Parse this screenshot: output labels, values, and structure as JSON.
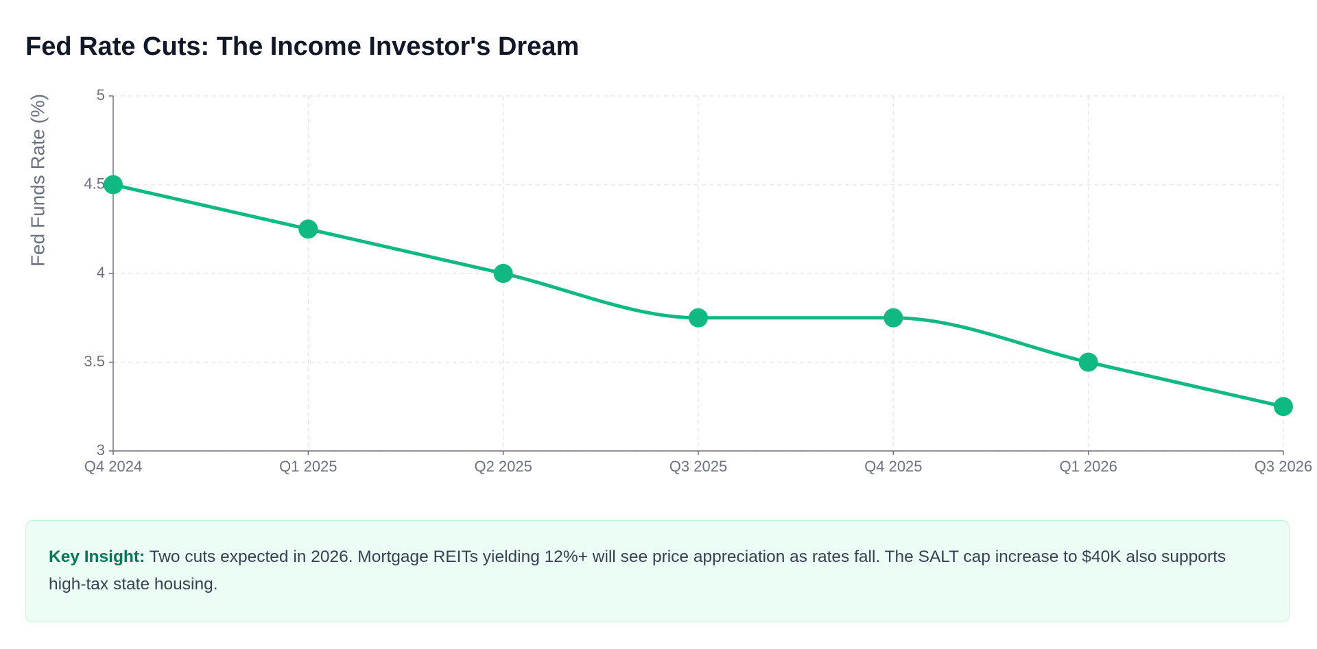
{
  "chart_data": {
    "type": "line",
    "title": "Fed Rate Cuts: The Income Investor's Dream",
    "y_label": "Fed Funds Rate (%)",
    "categories": [
      "Q4 2024",
      "Q1 2025",
      "Q2 2025",
      "Q3 2025",
      "Q4 2025",
      "Q1 2026",
      "Q3 2026"
    ],
    "values": [
      4.5,
      4.25,
      4,
      3.75,
      3.75,
      3.5,
      3.25
    ],
    "color": "#10b981",
    "ylim": [
      3,
      5
    ],
    "yticks": [
      3,
      3.5,
      4,
      4.5,
      5
    ],
    "grid": true
  },
  "insight": {
    "label": "Key Insight:",
    "text": "Two cuts expected in 2026. Mortgage REITs yielding 12%+ will see price appreciation as rates fall. The SALT cap increase to $40K also supports high-tax state housing."
  }
}
